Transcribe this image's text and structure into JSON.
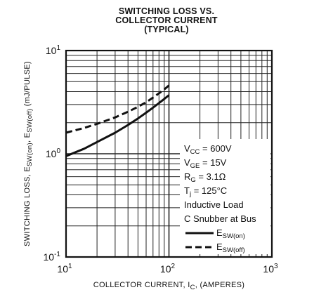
{
  "chart_data": {
    "type": "line",
    "title_lines": [
      "SWITCHING LOSS VS.",
      "COLLECTOR CURRENT",
      "(TYPICAL)"
    ],
    "xlabel": {
      "base": "COLLECTOR CURRENT, I",
      "sub": "C",
      "tail": ", (AMPERES)"
    },
    "ylabel": {
      "p1": "SWITCHING LOSS, E",
      "s1": "SW(on)",
      "p2": ", E",
      "s2": "SW(off)",
      "p3": " (mJ/PULSE)"
    },
    "x_scale": "log",
    "y_scale": "log",
    "xlim": [
      10,
      1000
    ],
    "ylim": [
      0.1,
      10
    ],
    "grid": true,
    "x_ticks": [
      {
        "base": "10",
        "exp": "1",
        "value": 10
      },
      {
        "base": "10",
        "exp": "2",
        "value": 100
      },
      {
        "base": "10",
        "exp": "3",
        "value": 1000
      }
    ],
    "y_ticks": [
      {
        "base": "10",
        "exp": "1",
        "value": 10
      },
      {
        "base": "10",
        "exp": "0",
        "value": 1
      },
      {
        "base": "10",
        "exp": "-1",
        "value": 0.1
      }
    ],
    "conditions": [
      {
        "main": "V",
        "sub": "CC",
        "rest": " = 600V"
      },
      {
        "main": "V",
        "sub": "GE",
        "rest": " = 15V"
      },
      {
        "main": "R",
        "sub": "G",
        "rest": " = 3.1Ω"
      },
      {
        "main": "T",
        "sub": "j",
        "rest": " = 125°C"
      },
      {
        "main": "Inductive Load",
        "sub": "",
        "rest": ""
      },
      {
        "main": "C Snubber at Bus",
        "sub": "",
        "rest": ""
      }
    ],
    "series": [
      {
        "name_main": "E",
        "name_sub": "SW(on)",
        "style": "solid",
        "color": "#111111",
        "x": [
          10,
          15,
          20,
          30,
          40,
          50,
          60,
          70,
          80,
          90,
          100
        ],
        "y": [
          0.95,
          1.12,
          1.3,
          1.6,
          1.9,
          2.2,
          2.5,
          2.8,
          3.1,
          3.4,
          3.7
        ]
      },
      {
        "name_main": "E",
        "name_sub": "SW(off)",
        "style": "dashed",
        "color": "#111111",
        "x": [
          10,
          15,
          20,
          30,
          40,
          50,
          60,
          70,
          80,
          90,
          100
        ],
        "y": [
          1.6,
          1.78,
          1.95,
          2.25,
          2.55,
          2.85,
          3.15,
          3.5,
          3.85,
          4.2,
          4.6
        ]
      }
    ]
  }
}
